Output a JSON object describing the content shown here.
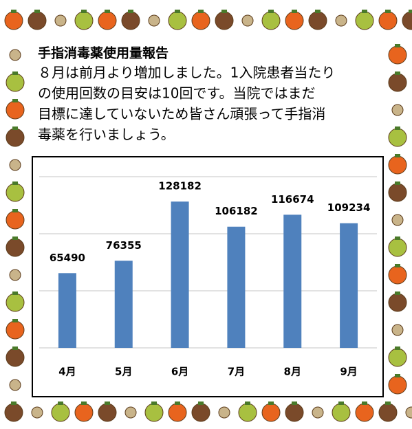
{
  "chart_data": {
    "type": "bar",
    "title": "手指消毒薬使用量報告",
    "text_lines": [
      "８月は前月より増加しました。1入院患者当たり",
      "の使用回数の目安は10回です。当院ではまだ",
      "目標に達していないため皆さん頑張って手指消",
      "毒薬を行いましょう。"
    ],
    "categories": [
      "4月",
      "5月",
      "6月",
      "7月",
      "8月",
      "9月"
    ],
    "values": [
      65490,
      76355,
      128182,
      106182,
      116674,
      109234
    ],
    "color": "#4f81bd",
    "ylim": [
      0,
      150000
    ],
    "yticks": [
      0,
      50000,
      100000,
      150000
    ],
    "grid": true
  }
}
